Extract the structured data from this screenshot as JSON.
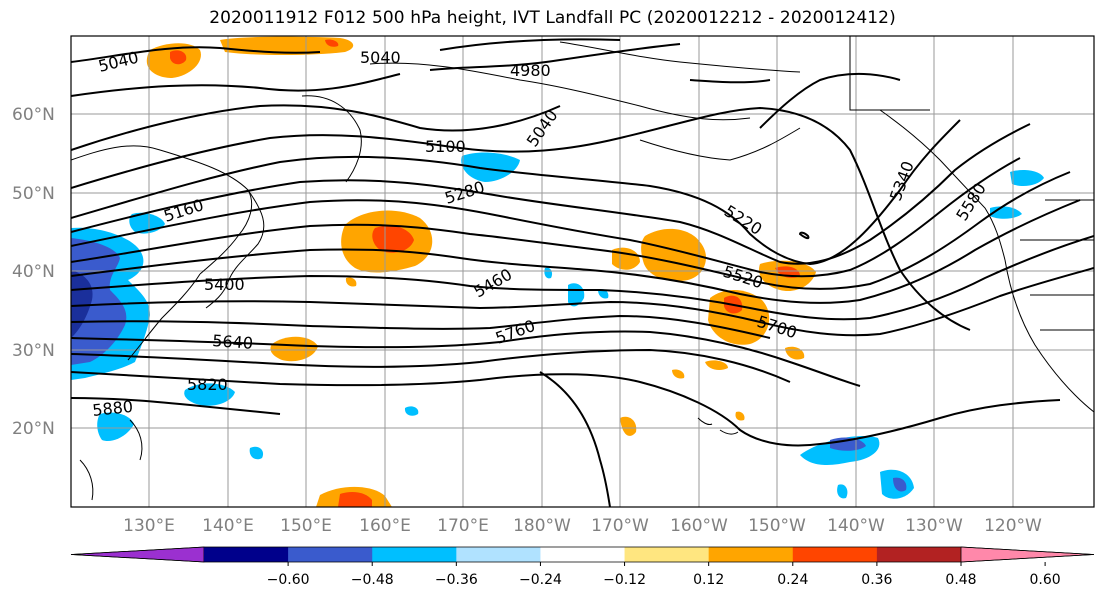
{
  "title": "2020011912 F012 500 hPa height, IVT Landfall PC (2020012212 - 2020012412)",
  "lat_labels": [
    "60°N",
    "50°N",
    "40°N",
    "30°N",
    "20°N"
  ],
  "lon_labels": [
    "130°E",
    "140°E",
    "150°E",
    "160°E",
    "170°E",
    "180°W",
    "170°W",
    "160°W",
    "150°W",
    "140°W",
    "130°W",
    "120°W"
  ],
  "contour_labels": [
    "5040",
    "5040",
    "4980",
    "5040",
    "5100",
    "5160",
    "5280",
    "5220",
    "5340",
    "5580",
    "5400",
    "5460",
    "5520",
    "5640",
    "5760",
    "5700",
    "5820",
    "5880"
  ],
  "colorbar": {
    "ticks": [
      "−0.60",
      "−0.48",
      "−0.36",
      "−0.24",
      "−0.12",
      "0.12",
      "0.24",
      "0.36",
      "0.48",
      "0.60"
    ],
    "colors": [
      "#9b30d0",
      "#00008b",
      "#3a5bcd",
      "#00bfff",
      "#b0e2ff",
      "#ffffff",
      "#ffe680",
      "#ffa500",
      "#ff4500",
      "#b22222",
      "#ff88aa"
    ]
  }
}
